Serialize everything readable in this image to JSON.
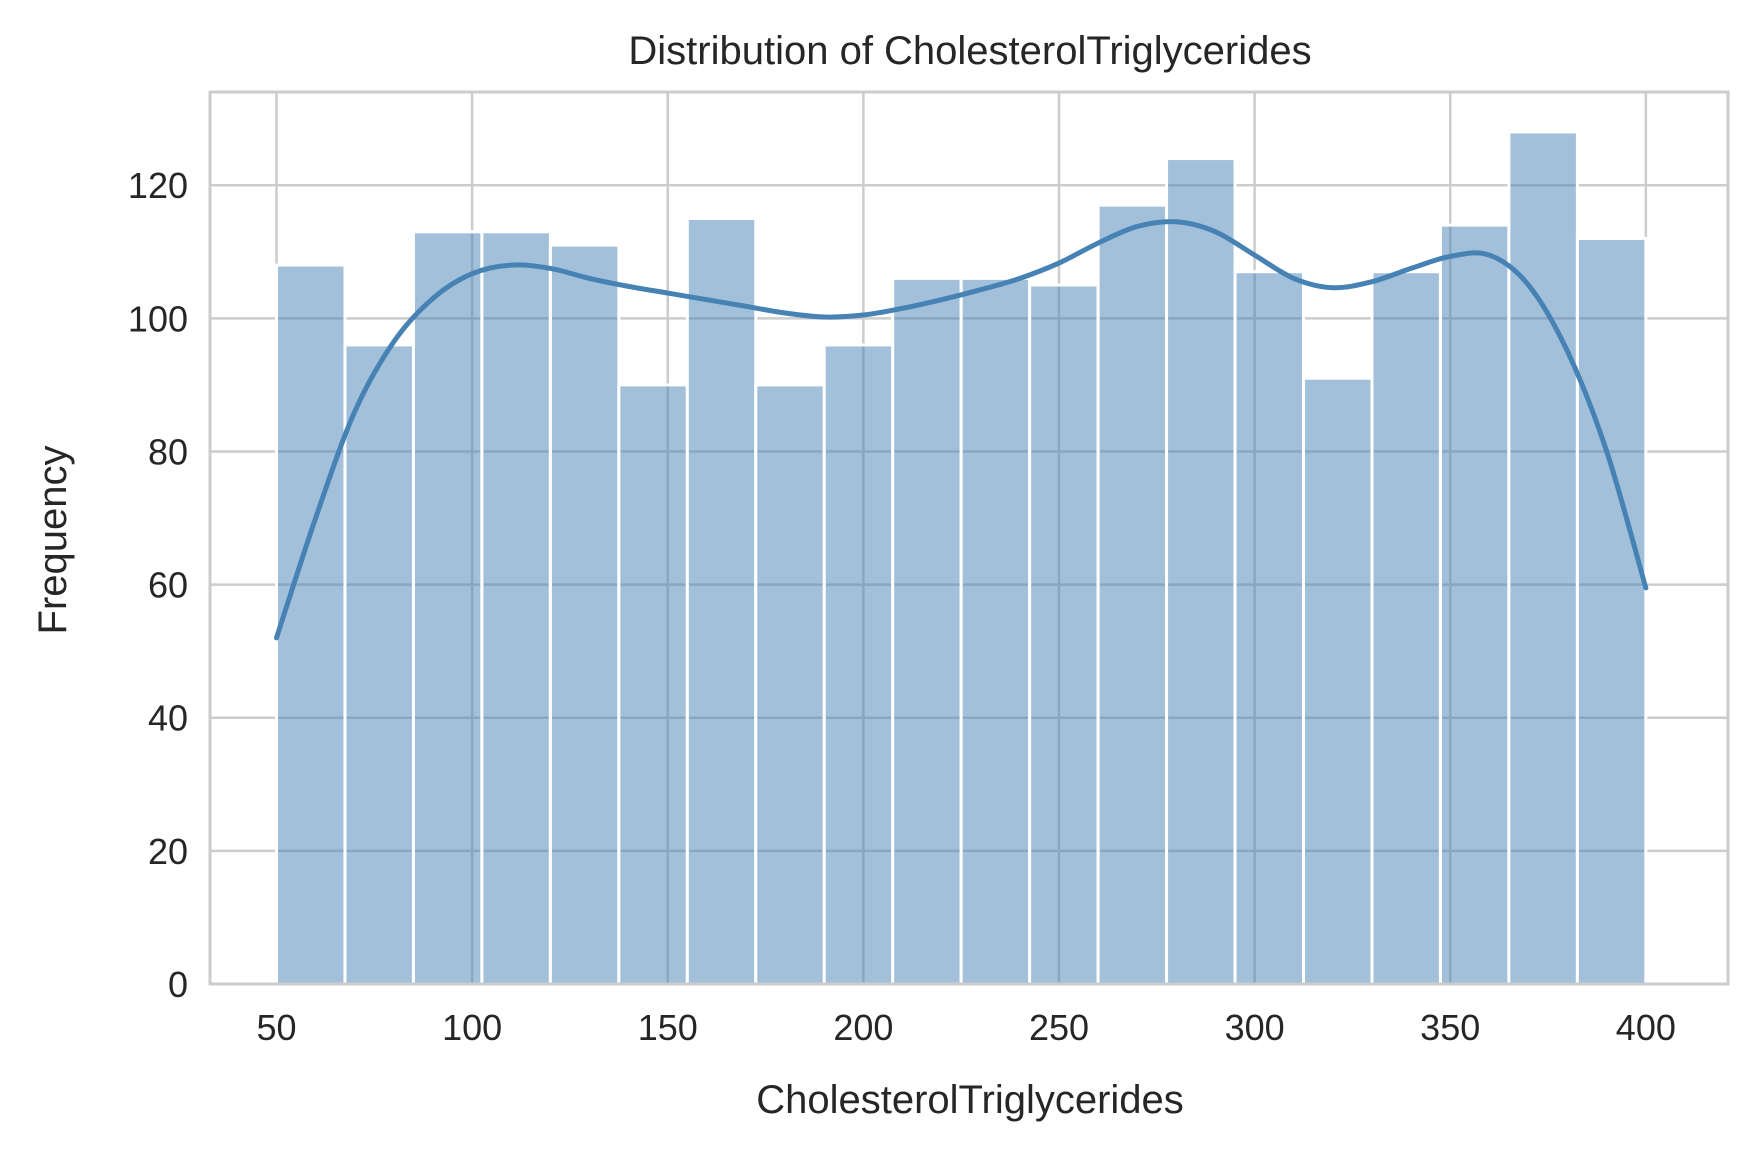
{
  "chart_data": {
    "type": "bar",
    "subtype": "histogram-with-kde",
    "title": "Distribution of CholesterolTriglycerides",
    "xlabel": "CholesterolTriglycerides",
    "ylabel": "Frequency",
    "xlim": [
      33,
      421
    ],
    "ylim": [
      0,
      134
    ],
    "xticks": [
      50,
      100,
      150,
      200,
      250,
      300,
      350,
      400
    ],
    "yticks": [
      0,
      20,
      40,
      60,
      80,
      100,
      120
    ],
    "bin_edges": [
      50,
      67.5,
      85,
      102.5,
      120,
      137.5,
      155,
      172.5,
      190,
      207.5,
      225,
      242.5,
      260,
      277.5,
      295,
      312.5,
      330,
      347.5,
      365,
      382.5,
      400
    ],
    "values": [
      108,
      96,
      113,
      113,
      111,
      90,
      115,
      90,
      96,
      106,
      106,
      105,
      117,
      124,
      107,
      91,
      107,
      114,
      128,
      112
    ],
    "kde": {
      "x": [
        50,
        60,
        70,
        80,
        90,
        100,
        110,
        120,
        130,
        140,
        150,
        160,
        170,
        180,
        190,
        200,
        210,
        220,
        230,
        240,
        250,
        260,
        270,
        280,
        290,
        300,
        310,
        320,
        330,
        340,
        350,
        360,
        370,
        380,
        390,
        400
      ],
      "y": [
        52,
        70,
        86,
        96.5,
        103,
        106.7,
        108,
        107.5,
        106,
        104.8,
        103.8,
        102.8,
        101.8,
        100.8,
        100.2,
        100.5,
        101.5,
        102.8,
        104.3,
        106,
        108.3,
        111.3,
        113.8,
        114.5,
        113,
        109.5,
        106,
        104.6,
        105.5,
        107.5,
        109.3,
        109.5,
        105,
        95,
        80,
        59.5
      ]
    },
    "grid": true,
    "legend": "none",
    "colors": {
      "bar_fill": "#4682b4",
      "bar_opacity": 0.5,
      "bar_edge": "#ffffff",
      "line": "#4682b4",
      "grid": "#cccccc",
      "spine": "#cccccc",
      "text": "#262626"
    }
  }
}
